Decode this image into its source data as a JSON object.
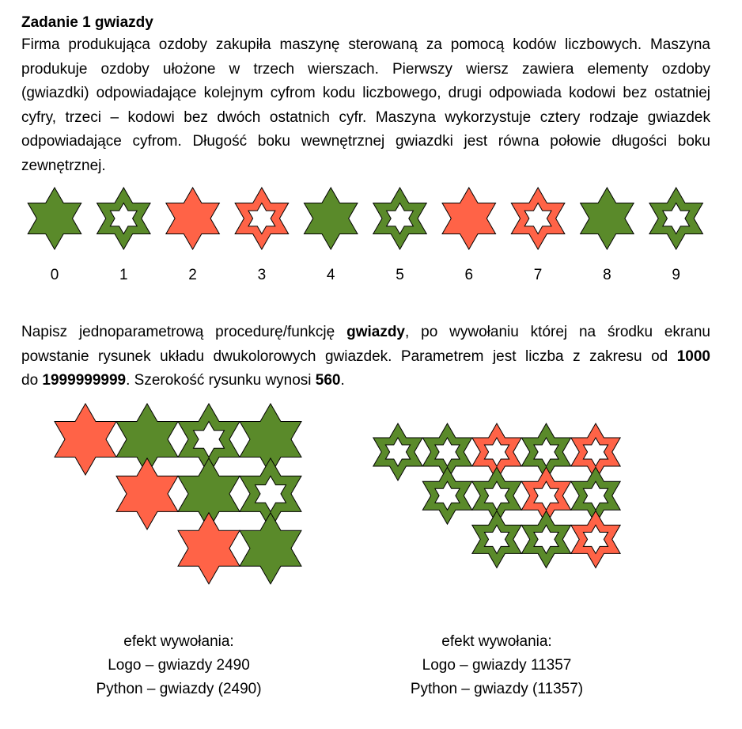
{
  "title": "Zadanie 1 gwiazdy",
  "intro": {
    "lines": [
      "Firma produkująca ozdoby zakupiła maszynę sterowaną za pomocą kodów liczbowych. Maszyna",
      "produkuje ozdoby ułożone w trzech wierszach. Pierwszy wiersz zawiera elementy ozdoby",
      "(gwiazdki) odpowiadające kolejnym cyfrom kodu liczbowego, drugi odpowiada kodowi bez ostatniej",
      "cyfry, trzeci – kodowi bez dwóch ostatnich cyfr. Maszyna wykorzystuje cztery rodzaje gwiazdek",
      "odpowiadające cyfrom. Długość boku wewnętrznej gwiazdki jest równa połowie długości boku",
      "zewnętrznej."
    ]
  },
  "colors": {
    "green": "#5a8a2a",
    "red": "#ff6347",
    "outline": "#000000",
    "background": "#ffffff"
  },
  "digit_stars": [
    {
      "digit": "0",
      "color": "green",
      "hollow": false
    },
    {
      "digit": "1",
      "color": "green",
      "hollow": true
    },
    {
      "digit": "2",
      "color": "red",
      "hollow": false
    },
    {
      "digit": "3",
      "color": "red",
      "hollow": true
    },
    {
      "digit": "4",
      "color": "green",
      "hollow": false
    },
    {
      "digit": "5",
      "color": "green",
      "hollow": true
    },
    {
      "digit": "6",
      "color": "red",
      "hollow": false
    },
    {
      "digit": "7",
      "color": "red",
      "hollow": true
    },
    {
      "digit": "8",
      "color": "green",
      "hollow": false
    },
    {
      "digit": "9",
      "color": "green",
      "hollow": true
    }
  ],
  "task": {
    "line1": {
      "a": "Napisz jednoparametrową procedurę/funkcję ",
      "b": "gwiazdy",
      "c": ", po wywołaniu której na środku ekranu"
    },
    "line2": "powstanie rysunek układu dwukolorowych gwiazdek. Parametrem jest liczba z zakresu od ",
    "line2_bold": "1000",
    "line3": {
      "a": "do ",
      "b": "1999999999",
      "c": ". Szerokość rysunku wynosi ",
      "d": "560",
      "e": "."
    }
  },
  "examples": [
    {
      "code": "2490",
      "caption": {
        "effect": "efekt wywołania:",
        "logo": "Logo – gwiazdy 2490",
        "python": "Python – gwiazdy (2490)"
      }
    },
    {
      "code": "11357",
      "caption": {
        "effect": "efekt wywołania:",
        "logo": "Logo – gwiazdy 11357",
        "python": "Python – gwiazdy (11357)"
      }
    }
  ]
}
